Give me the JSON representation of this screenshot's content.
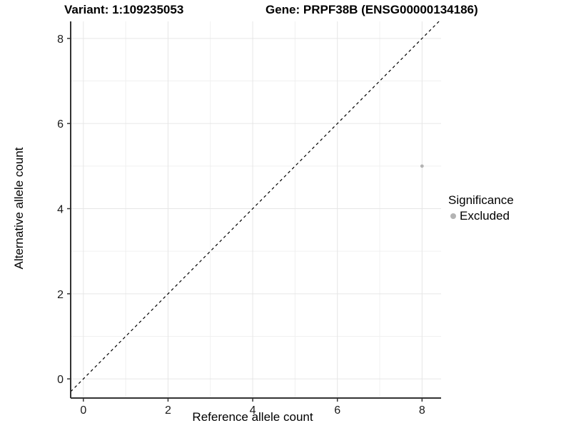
{
  "chart_data": {
    "type": "scatter",
    "title_variant": "Variant: 1:109235053",
    "title_gene": "Gene: PRPF38B (ENSG00000134186)",
    "xlabel": "Reference allele count",
    "ylabel": "Alternative allele count",
    "xlim": [
      -0.3,
      8.45
    ],
    "ylim": [
      -0.45,
      8.4
    ],
    "x_ticks": [
      0,
      2,
      4,
      6,
      8
    ],
    "y_ticks": [
      0,
      2,
      4,
      6,
      8
    ],
    "x_minor_grid": [
      1,
      3,
      5,
      7
    ],
    "y_minor_grid": [
      1,
      3,
      5,
      7
    ],
    "identity_line": {
      "slope": 1,
      "intercept": 0,
      "style": "dashed",
      "color": "#000000"
    },
    "series": [
      {
        "name": "Excluded",
        "points": [
          {
            "x": 8,
            "y": 5
          }
        ],
        "color": "#b3b3b3"
      }
    ],
    "legend": {
      "title": "Significance",
      "position": "right",
      "items": [
        {
          "label": "Excluded",
          "color": "#b3b3b3"
        }
      ]
    },
    "grid": "on",
    "colors": {
      "point": "#b3b3b3",
      "grid_major": "#e6e6e6",
      "grid_minor": "#f0f0f0",
      "axis_line": "#333333",
      "tick_text": "#1a1a1a"
    }
  }
}
